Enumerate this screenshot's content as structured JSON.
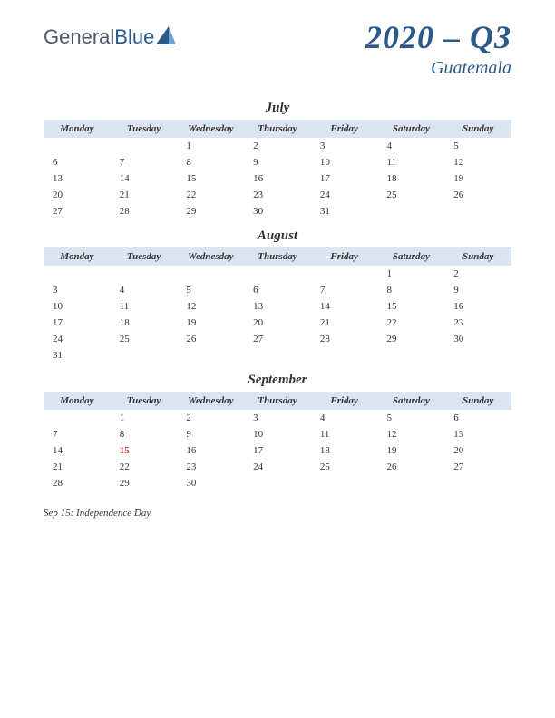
{
  "logo": {
    "general": "General",
    "blue": "Blue"
  },
  "title": "2020 – Q3",
  "subtitle": "Guatemala",
  "colors": {
    "header_bg": "#dbe5f1",
    "title_color": "#2b5a8a",
    "holiday_color": "#c0392b",
    "text_color": "#333333",
    "page_bg": "#ffffff"
  },
  "day_headers": [
    "Monday",
    "Tuesday",
    "Wednesday",
    "Thursday",
    "Friday",
    "Saturday",
    "Sunday"
  ],
  "months": [
    {
      "name": "July",
      "weeks": [
        [
          "",
          "",
          "1",
          "2",
          "3",
          "4",
          "5"
        ],
        [
          "6",
          "7",
          "8",
          "9",
          "10",
          "11",
          "12"
        ],
        [
          "13",
          "14",
          "15",
          "16",
          "17",
          "18",
          "19"
        ],
        [
          "20",
          "21",
          "22",
          "23",
          "24",
          "25",
          "26"
        ],
        [
          "27",
          "28",
          "29",
          "30",
          "31",
          "",
          ""
        ]
      ],
      "holidays": []
    },
    {
      "name": "August",
      "weeks": [
        [
          "",
          "",
          "",
          "",
          "",
          "1",
          "2"
        ],
        [
          "3",
          "4",
          "5",
          "6",
          "7",
          "8",
          "9"
        ],
        [
          "10",
          "11",
          "12",
          "13",
          "14",
          "15",
          "16"
        ],
        [
          "17",
          "18",
          "19",
          "20",
          "21",
          "22",
          "23"
        ],
        [
          "24",
          "25",
          "26",
          "27",
          "28",
          "29",
          "30"
        ],
        [
          "31",
          "",
          "",
          "",
          "",
          "",
          ""
        ]
      ],
      "holidays": []
    },
    {
      "name": "September",
      "weeks": [
        [
          "",
          "1",
          "2",
          "3",
          "4",
          "5",
          "6"
        ],
        [
          "7",
          "8",
          "9",
          "10",
          "11",
          "12",
          "13"
        ],
        [
          "14",
          "15",
          "16",
          "17",
          "18",
          "19",
          "20"
        ],
        [
          "21",
          "22",
          "23",
          "24",
          "25",
          "26",
          "27"
        ],
        [
          "28",
          "29",
          "30",
          "",
          "",
          "",
          ""
        ]
      ],
      "holidays": [
        "15"
      ]
    }
  ],
  "notes": "Sep 15: Independence Day"
}
